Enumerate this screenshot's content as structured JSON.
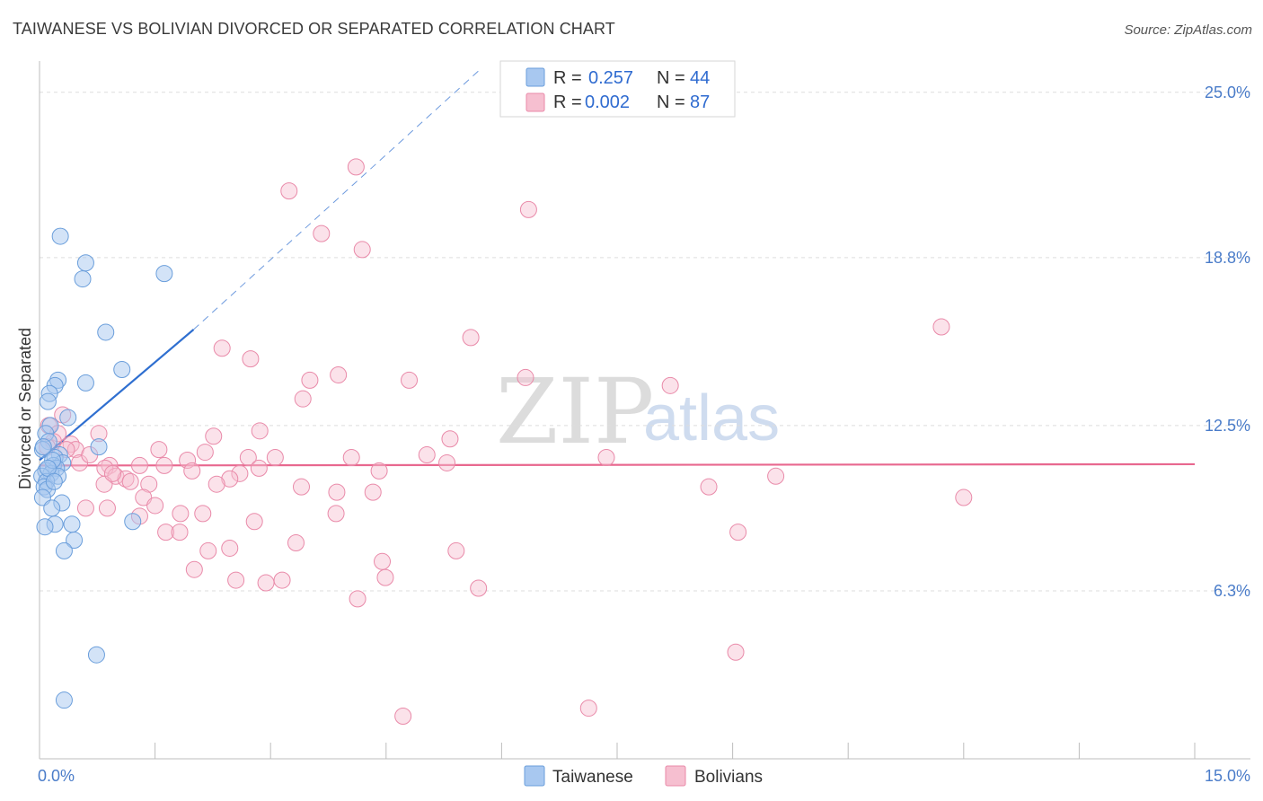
{
  "title": "TAIWANESE VS BOLIVIAN DIVORCED OR SEPARATED CORRELATION CHART",
  "source": "Source: ZipAtlas.com",
  "watermark": {
    "zip": "ZIP",
    "atlas": "atlas"
  },
  "colors": {
    "taiwanese_fill": "#a8c8f0",
    "taiwanese_stroke": "#6a9edb",
    "taiwanese_line": "#2f6fd0",
    "bolivian_fill": "#f6bfd0",
    "bolivian_stroke": "#e98aa9",
    "bolivian_line": "#e8688f",
    "grid": "#dddddd",
    "tick_text": "#4a7cc9"
  },
  "legend": {
    "rows": [
      {
        "r_label": "R =",
        "r_value": "0.257",
        "n_label": "N =",
        "n_value": "44"
      },
      {
        "r_label": "R =",
        "r_value": "0.002",
        "n_label": "N =",
        "n_value": "87"
      }
    ]
  },
  "chart_data": {
    "type": "scatter",
    "title": "TAIWANESE VS BOLIVIAN DIVORCED OR SEPARATED CORRELATION CHART",
    "xlabel": "",
    "ylabel": "Divorced or Separated",
    "xlim": [
      0,
      15
    ],
    "ylim": [
      0,
      25.8
    ],
    "x_tick_labels": [
      "0.0%",
      "15.0%"
    ],
    "y_ticks": [
      {
        "value": 6.3,
        "label": "6.3%"
      },
      {
        "value": 12.5,
        "label": "12.5%"
      },
      {
        "value": 18.8,
        "label": "18.8%"
      },
      {
        "value": 25.0,
        "label": "25.0%"
      }
    ],
    "series": [
      {
        "name": "Taiwanese",
        "r": 0.257,
        "n": 44,
        "trend": {
          "x0": 0.0,
          "y0": 11.2,
          "x1": 2.0,
          "y1": 16.1,
          "dash_to_x": 5.7,
          "dash_to_y": 25.8
        },
        "points": [
          [
            0.27,
            19.6
          ],
          [
            0.6,
            18.6
          ],
          [
            0.56,
            18.0
          ],
          [
            1.62,
            18.2
          ],
          [
            0.86,
            16.0
          ],
          [
            1.07,
            14.6
          ],
          [
            0.24,
            14.2
          ],
          [
            0.6,
            14.1
          ],
          [
            0.2,
            14.0
          ],
          [
            0.13,
            13.7
          ],
          [
            0.11,
            13.4
          ],
          [
            0.37,
            12.8
          ],
          [
            0.14,
            12.5
          ],
          [
            0.08,
            12.2
          ],
          [
            0.12,
            11.9
          ],
          [
            0.04,
            11.6
          ],
          [
            0.77,
            11.7
          ],
          [
            0.26,
            11.4
          ],
          [
            0.2,
            11.3
          ],
          [
            0.3,
            11.1
          ],
          [
            0.18,
            11.0
          ],
          [
            0.22,
            10.9
          ],
          [
            0.08,
            10.8
          ],
          [
            0.15,
            10.7
          ],
          [
            0.03,
            10.6
          ],
          [
            0.24,
            10.6
          ],
          [
            0.09,
            10.4
          ],
          [
            0.06,
            10.2
          ],
          [
            0.1,
            10.1
          ],
          [
            0.04,
            9.8
          ],
          [
            0.29,
            9.6
          ],
          [
            0.16,
            9.4
          ],
          [
            0.42,
            8.8
          ],
          [
            0.2,
            8.8
          ],
          [
            0.07,
            8.7
          ],
          [
            1.21,
            8.9
          ],
          [
            0.45,
            8.2
          ],
          [
            0.32,
            7.8
          ],
          [
            0.74,
            3.9
          ],
          [
            0.32,
            2.2
          ],
          [
            0.05,
            11.7
          ],
          [
            0.17,
            11.2
          ],
          [
            0.11,
            10.9
          ],
          [
            0.19,
            10.4
          ]
        ]
      },
      {
        "name": "Bolivians",
        "r": 0.002,
        "n": 87,
        "trend": {
          "x0": 0.0,
          "y0": 11.0,
          "x1": 15.0,
          "y1": 11.05
        },
        "points": [
          [
            4.11,
            22.2
          ],
          [
            3.24,
            21.3
          ],
          [
            6.35,
            20.6
          ],
          [
            3.66,
            19.7
          ],
          [
            4.19,
            19.1
          ],
          [
            11.71,
            16.2
          ],
          [
            5.6,
            15.8
          ],
          [
            2.37,
            15.4
          ],
          [
            2.74,
            15.0
          ],
          [
            3.88,
            14.4
          ],
          [
            3.51,
            14.2
          ],
          [
            4.8,
            14.2
          ],
          [
            6.31,
            14.3
          ],
          [
            8.19,
            14.0
          ],
          [
            3.42,
            13.5
          ],
          [
            0.3,
            12.9
          ],
          [
            0.12,
            12.5
          ],
          [
            0.24,
            12.2
          ],
          [
            0.77,
            12.2
          ],
          [
            2.86,
            12.3
          ],
          [
            2.26,
            12.1
          ],
          [
            5.33,
            12.0
          ],
          [
            0.18,
            11.9
          ],
          [
            0.41,
            11.8
          ],
          [
            0.47,
            11.6
          ],
          [
            1.55,
            11.6
          ],
          [
            2.15,
            11.5
          ],
          [
            0.1,
            11.7
          ],
          [
            4.05,
            11.3
          ],
          [
            5.03,
            11.4
          ],
          [
            2.71,
            11.3
          ],
          [
            3.06,
            11.3
          ],
          [
            1.92,
            11.2
          ],
          [
            7.36,
            11.3
          ],
          [
            0.52,
            11.1
          ],
          [
            0.91,
            11.0
          ],
          [
            1.3,
            11.0
          ],
          [
            1.62,
            11.0
          ],
          [
            5.29,
            11.1
          ],
          [
            0.85,
            10.9
          ],
          [
            1.98,
            10.8
          ],
          [
            4.41,
            10.8
          ],
          [
            2.6,
            10.7
          ],
          [
            0.99,
            10.6
          ],
          [
            9.56,
            10.6
          ],
          [
            1.12,
            10.5
          ],
          [
            2.47,
            10.5
          ],
          [
            0.84,
            10.3
          ],
          [
            1.42,
            10.3
          ],
          [
            2.3,
            10.3
          ],
          [
            3.4,
            10.2
          ],
          [
            4.33,
            10.0
          ],
          [
            3.86,
            10.0
          ],
          [
            8.69,
            10.2
          ],
          [
            1.35,
            9.8
          ],
          [
            12.0,
            9.8
          ],
          [
            1.5,
            9.5
          ],
          [
            0.88,
            9.4
          ],
          [
            0.6,
            9.4
          ],
          [
            1.83,
            9.2
          ],
          [
            2.12,
            9.2
          ],
          [
            3.85,
            9.2
          ],
          [
            1.3,
            9.1
          ],
          [
            2.79,
            8.9
          ],
          [
            1.64,
            8.5
          ],
          [
            1.82,
            8.5
          ],
          [
            9.07,
            8.5
          ],
          [
            3.33,
            8.1
          ],
          [
            2.47,
            7.9
          ],
          [
            2.19,
            7.8
          ],
          [
            5.41,
            7.8
          ],
          [
            4.45,
            7.4
          ],
          [
            2.01,
            7.1
          ],
          [
            4.49,
            6.8
          ],
          [
            2.55,
            6.7
          ],
          [
            3.15,
            6.7
          ],
          [
            2.94,
            6.6
          ],
          [
            5.7,
            6.4
          ],
          [
            4.13,
            6.0
          ],
          [
            9.04,
            4.0
          ],
          [
            7.13,
            1.9
          ],
          [
            4.72,
            1.6
          ],
          [
            0.35,
            11.6
          ],
          [
            0.65,
            11.4
          ],
          [
            0.95,
            10.7
          ],
          [
            1.18,
            10.4
          ],
          [
            2.85,
            10.9
          ]
        ]
      }
    ]
  }
}
